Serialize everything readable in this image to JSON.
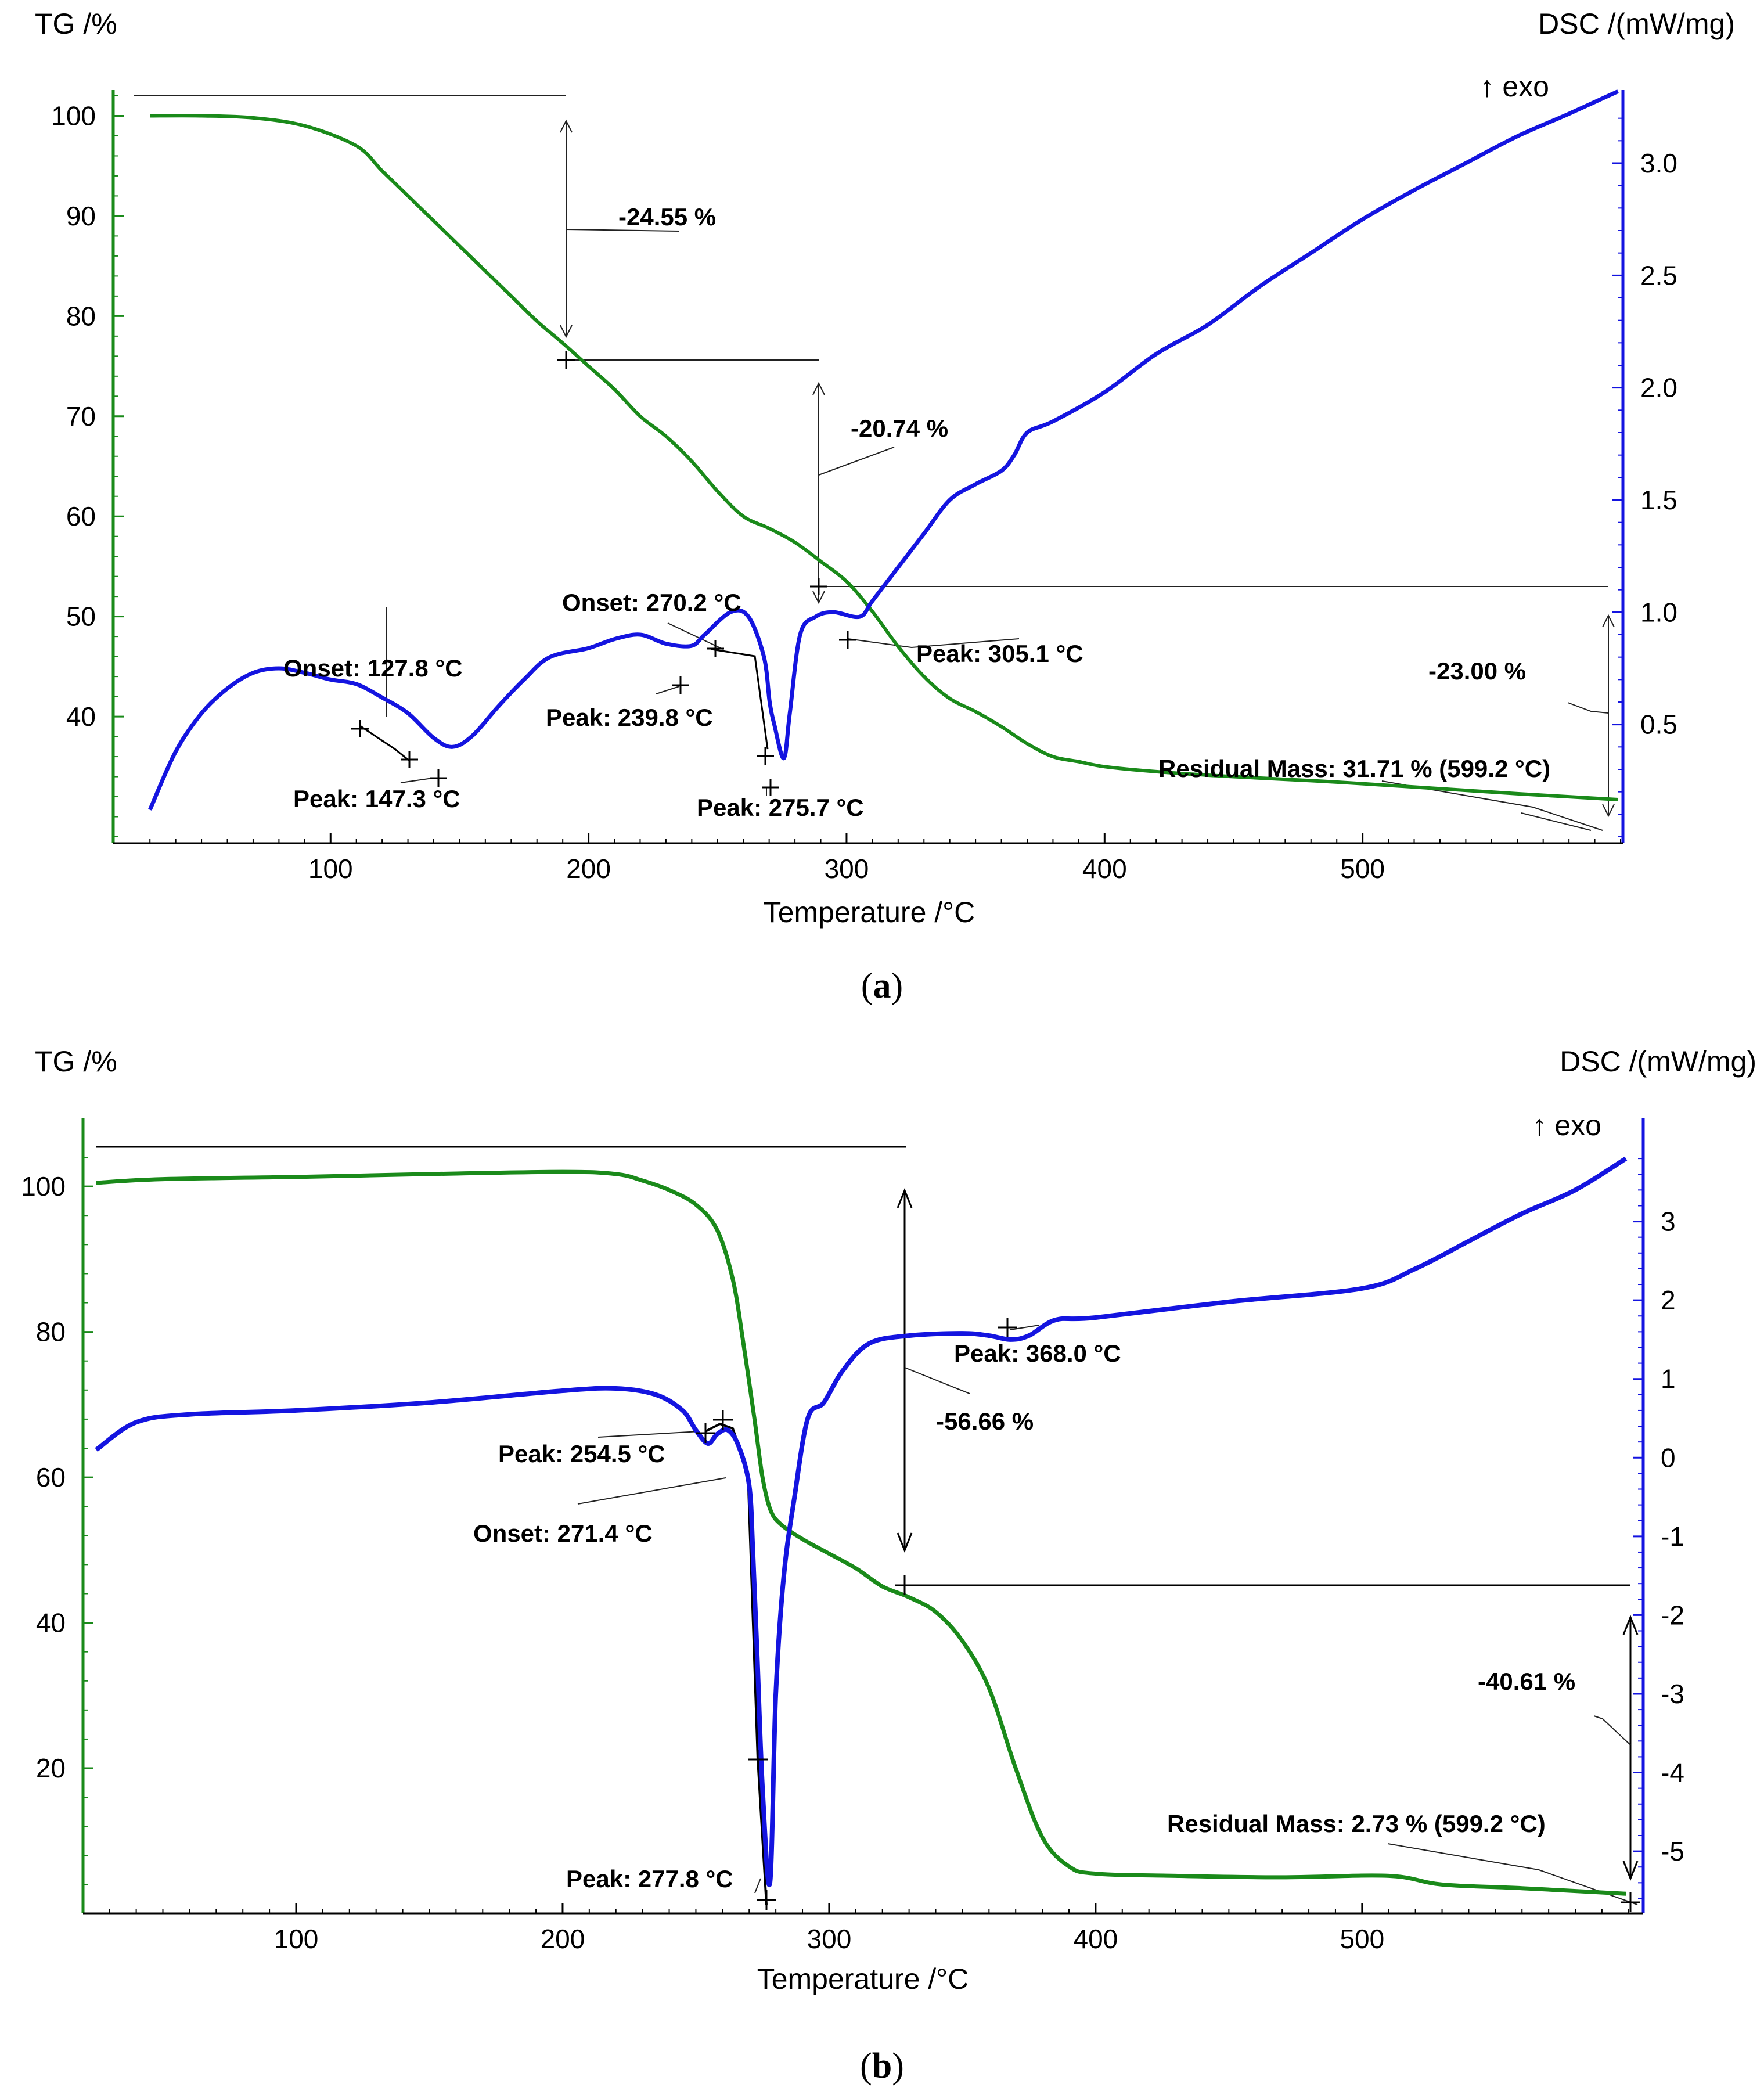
{
  "chart_data": [
    {
      "panel": "a",
      "type": "line",
      "xlabel": "Temperature /°C",
      "ylabel_left": "TG /%",
      "ylabel_right": "DSC /(mW/mg)",
      "exo_label": "↑ exo",
      "xlim": [
        25,
        600
      ],
      "ylim_left": [
        28,
        102
      ],
      "ylim_right": [
        0.0,
        3.3
      ],
      "x_ticks": [
        100,
        200,
        300,
        400,
        500
      ],
      "y_left_ticks": [
        40,
        50,
        60,
        70,
        80,
        90,
        100
      ],
      "y_right_ticks": [
        0.5,
        1.0,
        1.5,
        2.0,
        2.5,
        3.0
      ],
      "y_right_tick_labels": [
        "0.5",
        "1.0",
        "1.5",
        "2.0",
        "2.5",
        "3.0"
      ],
      "series": [
        {
          "name": "TG",
          "axis": "left",
          "color": "#1a8a1a",
          "x": [
            30,
            50,
            70,
            90,
            110,
            120,
            130,
            140,
            150,
            160,
            170,
            180,
            190,
            200,
            210,
            220,
            230,
            240,
            250,
            260,
            270,
            280,
            290,
            300,
            310,
            320,
            330,
            340,
            350,
            360,
            370,
            380,
            390,
            400,
            420,
            450,
            480,
            500,
            530,
            560,
            599
          ],
          "values": [
            100,
            100,
            99.8,
            99.0,
            97.0,
            94.5,
            92.0,
            89.5,
            87.0,
            84.5,
            82.0,
            79.5,
            77.3,
            75.0,
            72.7,
            70.0,
            68.0,
            65.5,
            62.5,
            60.0,
            58.8,
            57.4,
            55.5,
            53.5,
            50.5,
            47.0,
            44.0,
            41.8,
            40.5,
            39.0,
            37.3,
            36.0,
            35.5,
            35.0,
            34.5,
            34.0,
            33.6,
            33.3,
            32.8,
            32.3,
            31.71
          ]
        },
        {
          "name": "DSC",
          "axis": "right",
          "color": "#1414e0",
          "x": [
            30,
            40,
            50,
            60,
            70,
            80,
            90,
            100,
            110,
            120,
            130,
            140,
            147.3,
            155,
            165,
            175,
            185,
            200,
            210,
            220,
            230,
            239.8,
            245,
            255,
            262,
            268,
            270.2,
            272,
            275.7,
            278,
            282,
            288,
            295,
            305.1,
            310,
            320,
            330,
            340,
            350,
            360,
            365,
            370,
            380,
            400,
            420,
            440,
            460,
            480,
            500,
            520,
            540,
            560,
            580,
            599
          ],
          "values": [
            0.12,
            0.38,
            0.55,
            0.66,
            0.73,
            0.75,
            0.73,
            0.7,
            0.68,
            0.62,
            0.55,
            0.44,
            0.4,
            0.45,
            0.58,
            0.7,
            0.8,
            0.84,
            0.88,
            0.9,
            0.86,
            0.85,
            0.9,
            1.0,
            0.98,
            0.8,
            0.6,
            0.5,
            0.35,
            0.55,
            0.9,
            0.98,
            1.0,
            0.98,
            1.05,
            1.2,
            1.35,
            1.5,
            1.57,
            1.63,
            1.7,
            1.8,
            1.85,
            1.98,
            2.15,
            2.28,
            2.45,
            2.6,
            2.75,
            2.88,
            3.0,
            3.12,
            3.22,
            3.32
          ]
        }
      ],
      "annotations": {
        "step1": "-24.55 %",
        "step2": "-20.74 %",
        "step3": "-23.00 %",
        "onset1": "Onset: 127.8 °C",
        "peak1": "Peak: 147.3 °C",
        "peak2": "Peak: 239.8 °C",
        "onset2": "Onset: 270.2 °C",
        "peak3": "Peak: 275.7 °C",
        "peak4": "Peak: 305.1 °C",
        "residual": "Residual Mass: 31.71 % (599.2 °C)"
      }
    },
    {
      "panel": "b",
      "type": "line",
      "xlabel": "Temperature /°C",
      "ylabel_left": "TG /%",
      "ylabel_right": "DSC /(mW/mg)",
      "exo_label": "↑ exo",
      "xlim": [
        22,
        602
      ],
      "ylim_left": [
        1,
        106
      ],
      "ylim_right": [
        -5.7,
        4.0
      ],
      "x_ticks": [
        100,
        200,
        300,
        400,
        500
      ],
      "y_left_ticks": [
        20,
        40,
        60,
        80,
        100
      ],
      "y_right_ticks": [
        -5,
        -4,
        -3,
        -2,
        -1,
        0,
        1,
        2,
        3
      ],
      "y_right_tick_labels": [
        "-5",
        "-4",
        "-3",
        "-2",
        "-1",
        "0",
        "1",
        "2",
        "3"
      ],
      "series": [
        {
          "name": "TG",
          "axis": "left",
          "color": "#1a8a1a",
          "x": [
            25,
            50,
            100,
            150,
            200,
            220,
            230,
            240,
            250,
            258,
            264,
            268,
            272,
            275,
            278,
            282,
            290,
            300,
            310,
            320,
            330,
            340,
            350,
            360,
            370,
            380,
            390,
            400,
            430,
            470,
            510,
            530,
            560,
            599
          ],
          "values": [
            100.5,
            101.0,
            101.3,
            101.7,
            102.0,
            101.7,
            100.8,
            99.5,
            97.5,
            94.0,
            87.0,
            78.0,
            68.0,
            60.0,
            55.5,
            53.5,
            51.5,
            49.5,
            47.5,
            45.0,
            43.5,
            41.5,
            37.5,
            31.0,
            20.0,
            10.5,
            6.5,
            5.5,
            5.2,
            5.0,
            5.2,
            4.0,
            3.5,
            2.73
          ]
        },
        {
          "name": "DSC",
          "axis": "right",
          "color": "#1414e0",
          "x": [
            25,
            40,
            60,
            100,
            150,
            200,
            220,
            235,
            245,
            250,
            254.5,
            258,
            262,
            266,
            270,
            271.4,
            273,
            275,
            277.8,
            280,
            283,
            287,
            292,
            298,
            305,
            315,
            330,
            350,
            360,
            368.0,
            375,
            385,
            400,
            450,
            500,
            520,
            540,
            560,
            580,
            599
          ],
          "values": [
            0.1,
            0.45,
            0.55,
            0.6,
            0.7,
            0.85,
            0.88,
            0.8,
            0.6,
            0.35,
            0.18,
            0.3,
            0.35,
            0.15,
            -0.35,
            -1.2,
            -2.5,
            -4.2,
            -5.4,
            -3.0,
            -1.5,
            -0.5,
            0.5,
            0.7,
            1.1,
            1.45,
            1.55,
            1.58,
            1.55,
            1.5,
            1.55,
            1.75,
            1.78,
            1.98,
            2.15,
            2.4,
            2.75,
            3.1,
            3.4,
            3.8
          ]
        }
      ],
      "annotations": {
        "step1": "-56.66 %",
        "step2": "-40.61 %",
        "peak1": "Peak: 254.5 °C",
        "onset1": "Onset: 271.4 °C",
        "peak2": "Peak: 277.8 °C",
        "peak3": "Peak: 368.0 °C",
        "residual": "Residual Mass: 2.73 % (599.2 °C)"
      }
    }
  ],
  "captions": {
    "a": "a",
    "b": "b"
  }
}
